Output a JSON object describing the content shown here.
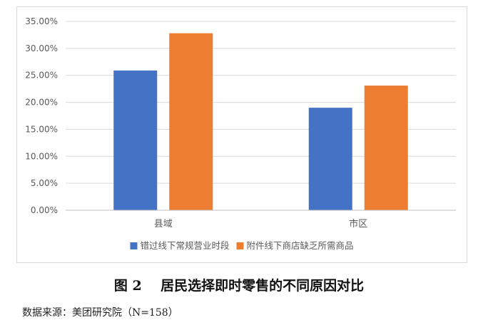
{
  "chart_data": {
    "type": "bar",
    "categories": [
      "县域",
      "市区"
    ],
    "series": [
      {
        "name": "错过线下常规营业时段",
        "color": "#4472C4",
        "values": [
          0.259,
          0.19
        ]
      },
      {
        "name": "附件线下商店缺乏所需商品",
        "color": "#ED7D31",
        "values": [
          0.328,
          0.231
        ]
      }
    ],
    "ylim": [
      0,
      0.35
    ],
    "yticks": [
      "0.00%",
      "5.00%",
      "10.00%",
      "15.00%",
      "20.00%",
      "25.00%",
      "30.00%",
      "35.00%"
    ],
    "grid": true,
    "legend_position": "bottom"
  },
  "caption": "图 2    居民选择即时零售的不同原因对比",
  "source": "数据来源：美团研究院（N=158）"
}
